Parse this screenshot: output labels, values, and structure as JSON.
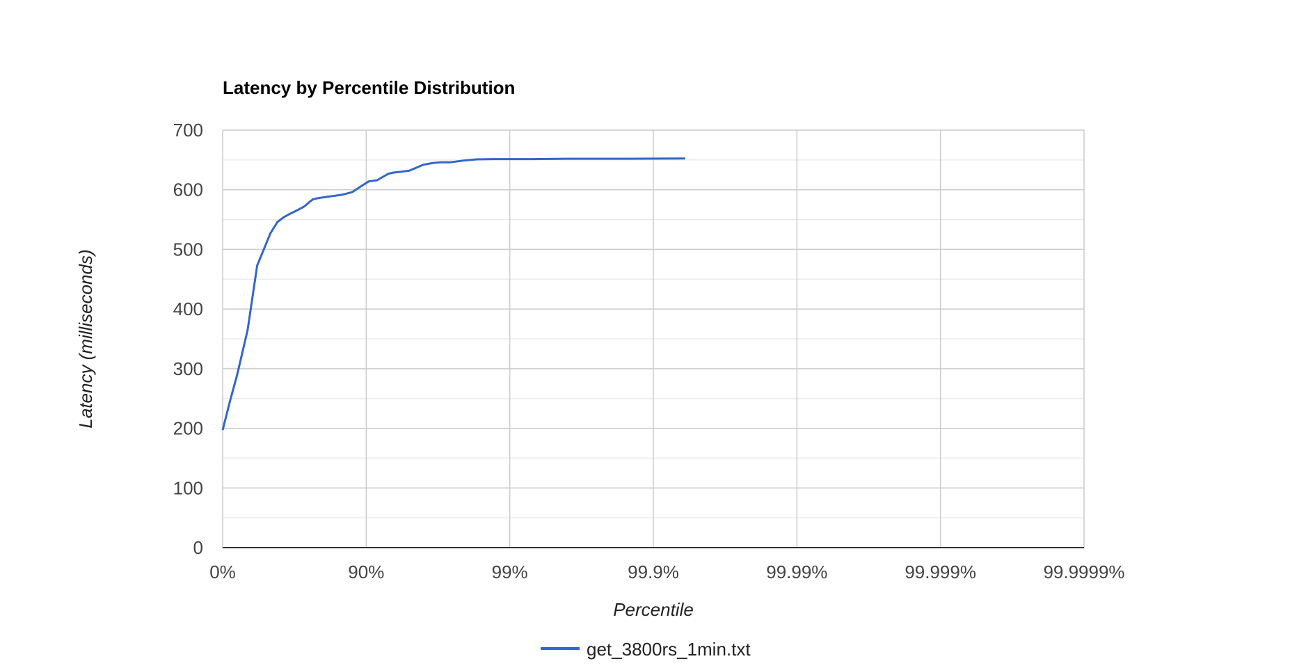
{
  "chart_data": {
    "type": "line",
    "title": "Latency by Percentile Distribution",
    "xlabel": "Percentile",
    "ylabel": "Latency (milliseconds)",
    "x_scale": "log-percentile (1/(1-p))",
    "x_ticks": [
      "0%",
      "90%",
      "99%",
      "99.9%",
      "99.99%",
      "99.999%",
      "99.9999%"
    ],
    "y_ticks": [
      "0",
      "100",
      "200",
      "300",
      "400",
      "500",
      "600",
      "700"
    ],
    "ylim": [
      0,
      700
    ],
    "grid": true,
    "legend_position": "bottom",
    "series": [
      {
        "name": "get_3800rs_1min.txt",
        "color": "#3366cc",
        "points": [
          {
            "p": 0,
            "y": 197
          },
          {
            "p": 11.0,
            "y": 245
          },
          {
            "p": 20.8,
            "y": 290
          },
          {
            "p": 33.0,
            "y": 365
          },
          {
            "p": 42.5,
            "y": 473
          },
          {
            "p": 53.5,
            "y": 527
          },
          {
            "p": 58.5,
            "y": 546
          },
          {
            "p": 62.5,
            "y": 554
          },
          {
            "p": 65.5,
            "y": 559
          },
          {
            "p": 68.2,
            "y": 563
          },
          {
            "p": 70.5,
            "y": 567
          },
          {
            "p": 73.0,
            "y": 572
          },
          {
            "p": 75.0,
            "y": 579
          },
          {
            "p": 76.5,
            "y": 584
          },
          {
            "p": 78.5,
            "y": 586
          },
          {
            "p": 81.0,
            "y": 588
          },
          {
            "p": 83.5,
            "y": 590
          },
          {
            "p": 85.5,
            "y": 592
          },
          {
            "p": 87.5,
            "y": 596
          },
          {
            "p": 89.0,
            "y": 605
          },
          {
            "p": 90.4,
            "y": 614
          },
          {
            "p": 91.6,
            "y": 616
          },
          {
            "p": 93.0,
            "y": 627
          },
          {
            "p": 93.6,
            "y": 629
          },
          {
            "p": 94.2,
            "y": 630
          },
          {
            "p": 95.0,
            "y": 632
          },
          {
            "p": 96.0,
            "y": 642
          },
          {
            "p": 96.6,
            "y": 645
          },
          {
            "p": 97.0,
            "y": 646
          },
          {
            "p": 97.4,
            "y": 646
          },
          {
            "p": 97.9,
            "y": 649
          },
          {
            "p": 98.3,
            "y": 651
          },
          {
            "p": 98.7,
            "y": 651.5
          },
          {
            "p": 99.3,
            "y": 651.5
          },
          {
            "p": 99.6,
            "y": 652
          },
          {
            "p": 99.85,
            "y": 652
          },
          {
            "p": 99.94,
            "y": 652.5
          }
        ]
      }
    ]
  }
}
